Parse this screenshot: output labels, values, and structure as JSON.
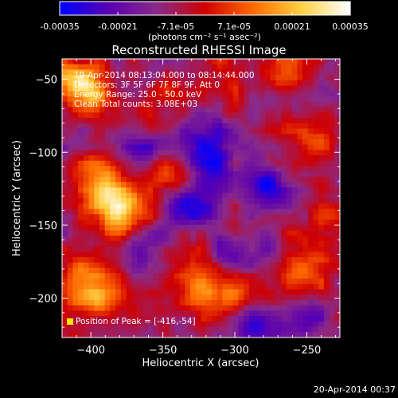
{
  "colorbar": {
    "tick_labels": [
      "-0.00035",
      "-0.00021",
      "-7.1e-05",
      "7.1e-05",
      "0.00021",
      "0.00035"
    ],
    "unit_label": "(photons cm⁻² s⁻¹ asec⁻²)",
    "range": [
      -0.00035,
      0.00035
    ],
    "colors": [
      "#0000ff",
      "#5a00b0",
      "#8a2a8a",
      "#d00000",
      "#ff6a00",
      "#ffd040",
      "#ffffff"
    ]
  },
  "chart_data": {
    "type": "heatmap",
    "title": "Reconstructed RHESSI Image",
    "xlabel": "Heliocentric X (arcsec)",
    "ylabel": "Heliocentric Y (arcsec)",
    "xlim": [
      -420,
      -227
    ],
    "ylim": [
      -227,
      -36
    ],
    "x_ticks": [
      -400,
      -350,
      -300,
      -250
    ],
    "y_ticks": [
      -50,
      -100,
      -150,
      -200
    ],
    "annotations": [
      "19-Apr-2014 08:13:04.000 to 08:14:44.000",
      "Detectors: 3F 5F 6F 7F 8F 9F, Att 0",
      "Energy Range: 25.0 - 50.0 keV",
      "Clean    Total counts: 3.08E+03"
    ],
    "peak_label": "Position of Peak = [-416,-54]",
    "peak": [
      -416,
      -54
    ],
    "hot_spots": [
      {
        "x": -405,
        "y": -55,
        "v": 0.00035
      },
      {
        "x": -378,
        "y": -140,
        "v": 0.00033
      },
      {
        "x": -395,
        "y": -120,
        "v": 0.00024
      },
      {
        "x": -345,
        "y": -115,
        "v": 0.00022
      },
      {
        "x": -405,
        "y": -190,
        "v": 0.00022
      },
      {
        "x": -385,
        "y": -200,
        "v": 0.00018
      },
      {
        "x": -300,
        "y": -200,
        "v": 0.0002
      },
      {
        "x": -320,
        "y": -195,
        "v": 0.00016
      },
      {
        "x": -335,
        "y": -180,
        "v": 0.00014
      },
      {
        "x": -300,
        "y": -150,
        "v": 0.00012
      },
      {
        "x": -250,
        "y": -95,
        "v": 0.00016
      },
      {
        "x": -245,
        "y": -175,
        "v": 0.00014
      },
      {
        "x": -265,
        "y": -190,
        "v": 0.00012
      },
      {
        "x": -310,
        "y": -55,
        "v": 0.00011
      },
      {
        "x": -260,
        "y": -45,
        "v": 0.00012
      },
      {
        "x": -355,
        "y": -70,
        "v": 0.0001
      },
      {
        "x": -240,
        "y": -140,
        "v": 0.0001
      }
    ],
    "cold_spots": [
      {
        "x": -320,
        "y": -100,
        "v": -0.00028
      },
      {
        "x": -300,
        "y": -165,
        "v": -0.00025
      },
      {
        "x": -330,
        "y": -135,
        "v": -0.00022
      },
      {
        "x": -290,
        "y": -215,
        "v": -0.00024
      },
      {
        "x": -275,
        "y": -125,
        "v": -0.00018
      },
      {
        "x": -365,
        "y": -100,
        "v": -0.00018
      },
      {
        "x": -360,
        "y": -170,
        "v": -0.00016
      },
      {
        "x": -255,
        "y": -215,
        "v": -0.00015
      }
    ]
  },
  "footer": {
    "timestamp": "20-Apr-2014 00:37"
  }
}
